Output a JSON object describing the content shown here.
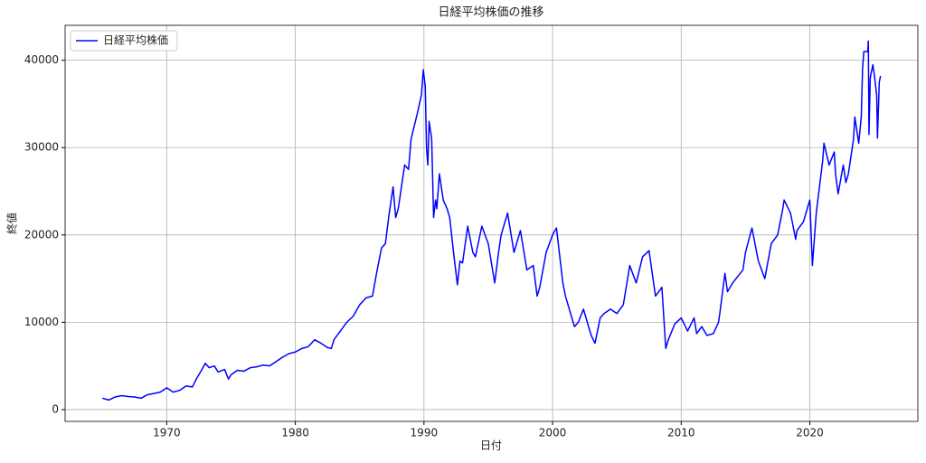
{
  "chart_data": {
    "type": "line",
    "title": "日経平均株価の推移",
    "x_label": "日付",
    "y_label": "終値",
    "legend": "upper left",
    "grid": true,
    "xlim": [
      1962.1,
      2028.4
    ],
    "ylim": [
      -1350,
      44000
    ],
    "xticks": [
      1970,
      1980,
      1990,
      2000,
      2010,
      2020
    ],
    "yticks": [
      0,
      10000,
      20000,
      30000,
      40000
    ],
    "x": [
      1965.0,
      1965.5,
      1966,
      1966.5,
      1967,
      1967.5,
      1968,
      1968.5,
      1969,
      1969.5,
      1970,
      1970.5,
      1971,
      1971.5,
      1972,
      1972.3,
      1972.7,
      1973.0,
      1973.3,
      1973.7,
      1974,
      1974.5,
      1974.8,
      1975,
      1975.5,
      1976,
      1976.5,
      1977,
      1977.5,
      1978,
      1978.5,
      1979,
      1979.5,
      1980,
      1980.5,
      1981,
      1981.5,
      1982,
      1982.5,
      1982.8,
      1983,
      1983.5,
      1984,
      1984.5,
      1985,
      1985.5,
      1986,
      1986.3,
      1986.7,
      1987,
      1987.3,
      1987.6,
      1987.8,
      1988,
      1988.5,
      1988.8,
      1989,
      1989.5,
      1989.8,
      1989.95,
      1990.1,
      1990.2,
      1990.3,
      1990.4,
      1990.6,
      1990.75,
      1990.9,
      1991,
      1991.2,
      1991.5,
      1991.8,
      1992,
      1992.3,
      1992.6,
      1992.8,
      1993,
      1993.4,
      1993.8,
      1994,
      1994.5,
      1995,
      1995.5,
      1995.8,
      1996,
      1996.5,
      1997,
      1997.5,
      1998,
      1998.5,
      1998.8,
      1999,
      1999.5,
      2000,
      2000.3,
      2000.8,
      2001,
      2001.7,
      2002,
      2002.4,
      2003,
      2003.3,
      2003.7,
      2004,
      2004.5,
      2005,
      2005.5,
      2006,
      2006.5,
      2007,
      2007.5,
      2008,
      2008.5,
      2008.8,
      2009,
      2009.5,
      2010,
      2010.5,
      2011,
      2011.2,
      2011.6,
      2012,
      2012.5,
      2012.9,
      2013,
      2013.4,
      2013.6,
      2014,
      2014.8,
      2015,
      2015.5,
      2016,
      2016.5,
      2017,
      2017.5,
      2017.9,
      2018,
      2018.5,
      2018.9,
      2019,
      2019.5,
      2020,
      2020.2,
      2020.5,
      2021,
      2021.1,
      2021.5,
      2021.9,
      2022,
      2022.2,
      2022.6,
      2022.8,
      2023,
      2023.4,
      2023.5,
      2023.8,
      2024,
      2024.1,
      2024.2,
      2024.5,
      2024.55,
      2024.6,
      2024.7,
      2024.9,
      2025.0,
      2025.2,
      2025.26,
      2025.4,
      2025.5
    ],
    "series": [
      {
        "name": "日経平均株価",
        "color": "#0000ff",
        "values": [
          1300,
          1100,
          1450,
          1600,
          1500,
          1450,
          1300,
          1700,
          1850,
          2000,
          2500,
          2000,
          2200,
          2700,
          2600,
          3500,
          4500,
          5300,
          4800,
          5000,
          4300,
          4600,
          3500,
          4000,
          4500,
          4400,
          4800,
          4900,
          5100,
          5000,
          5500,
          6000,
          6400,
          6600,
          7000,
          7200,
          8000,
          7600,
          7100,
          7000,
          8000,
          9000,
          10000,
          10700,
          12000,
          12800,
          13000,
          15500,
          18500,
          19000,
          22500,
          25500,
          22000,
          23000,
          28000,
          27500,
          31000,
          34000,
          36000,
          38900,
          37000,
          30000,
          28000,
          33000,
          31000,
          22000,
          24000,
          23000,
          27000,
          24000,
          23000,
          22000,
          18000,
          14300,
          17000,
          16800,
          21000,
          18000,
          17500,
          21000,
          19000,
          14500,
          18000,
          20000,
          22500,
          18000,
          20500,
          16000,
          16500,
          13000,
          14000,
          18000,
          20000,
          20800,
          14500,
          13000,
          9500,
          10000,
          11500,
          8500,
          7600,
          10500,
          11000,
          11500,
          11000,
          12000,
          16500,
          14500,
          17500,
          18200,
          13000,
          14000,
          7000,
          8000,
          9800,
          10500,
          9000,
          10500,
          8700,
          9500,
          8500,
          8700,
          10000,
          11000,
          15600,
          13500,
          14500,
          16000,
          18000,
          20800,
          17000,
          15000,
          19000,
          20000,
          23000,
          24000,
          22500,
          19500,
          20500,
          21500,
          24000,
          16500,
          22500,
          28500,
          30500,
          28000,
          29500,
          27000,
          24700,
          28000,
          26000,
          27000,
          31000,
          33500,
          30500,
          33500,
          39000,
          41000,
          41000,
          42200,
          31500,
          38000,
          39500,
          38500,
          36000,
          31100,
          37500,
          38200
        ]
      }
    ]
  }
}
